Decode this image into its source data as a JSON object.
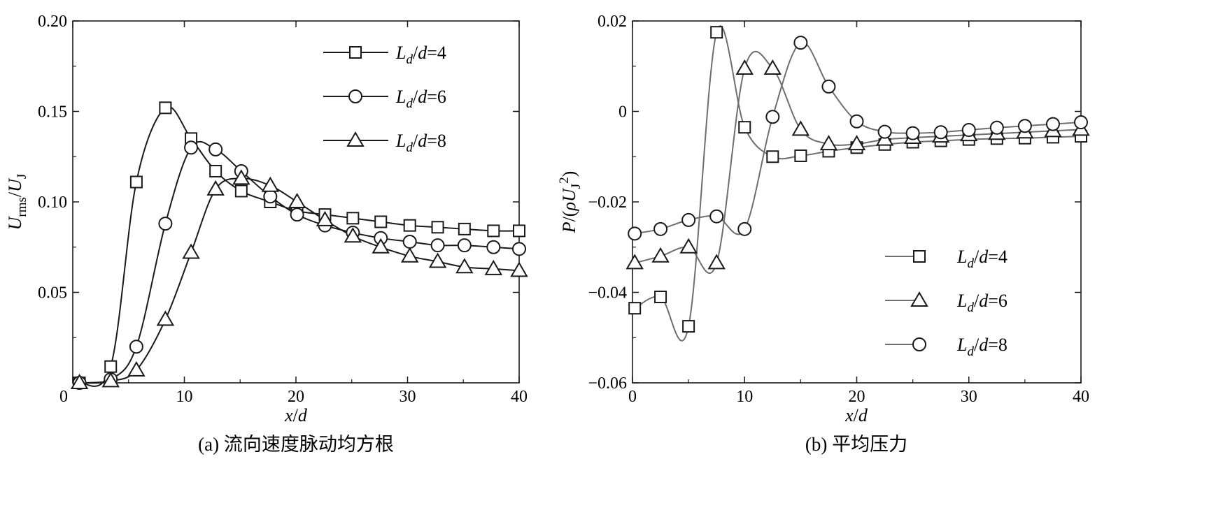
{
  "captions": {
    "a": "(a) 流向速度脉动均方根",
    "b": "(b) 平均压力"
  },
  "axis_text": {
    "a_y": {
      "U": "U",
      "sub_rms": "rms",
      "slash": "/",
      "U2": "U",
      "sub_J": "J"
    },
    "b_y": {
      "P": "P",
      "mid": "/(",
      "rho": "ρ",
      "U": "U",
      "sub_J": "J",
      "sup_2": "2",
      "close": ")"
    },
    "x": {
      "x": "x",
      "slash": "/",
      "d": "d"
    }
  },
  "colors": {
    "a_line": "#1a1a1a",
    "b_line": "#6e6e6e",
    "marker_fill": "#ffffff",
    "marker_stroke": "#1a1a1a"
  },
  "chart_data": [
    {
      "type": "line",
      "panel": "a",
      "xlabel": "x/d",
      "ylabel": "Urms/UJ",
      "xlim": [
        0,
        40
      ],
      "ylim": [
        0,
        0.2
      ],
      "xticks": [
        0,
        10,
        20,
        30,
        40
      ],
      "yticks": [
        0.05,
        0.1,
        0.15,
        0.2
      ],
      "ytick_labels": [
        "0.05",
        "0.10",
        "0.15",
        "0.20"
      ],
      "grid": false,
      "legend_position": "top-right",
      "series": [
        {
          "name": "Ld/d=4",
          "legend_main": "L",
          "legend_sub": "d",
          "legend_rest": "/d=4",
          "marker": "square",
          "x": [
            0.6,
            3.4,
            5.7,
            8.3,
            10.6,
            12.8,
            15.1,
            17.7,
            20.1,
            22.6,
            25.1,
            27.6,
            30.2,
            32.7,
            35.1,
            37.7,
            40
          ],
          "y": [
            0.0,
            0.009,
            0.111,
            0.152,
            0.135,
            0.117,
            0.106,
            0.1,
            0.095,
            0.093,
            0.091,
            0.089,
            0.087,
            0.086,
            0.085,
            0.084,
            0.084
          ]
        },
        {
          "name": "Ld/d=6",
          "legend_main": "L",
          "legend_sub": "d",
          "legend_rest": "/d=6",
          "marker": "circle",
          "x": [
            0.6,
            3.4,
            5.7,
            8.3,
            10.6,
            12.8,
            15.1,
            17.7,
            20.1,
            22.6,
            25.1,
            27.6,
            30.2,
            32.7,
            35.1,
            37.7,
            40
          ],
          "y": [
            0.0,
            0.002,
            0.02,
            0.088,
            0.13,
            0.129,
            0.117,
            0.103,
            0.093,
            0.087,
            0.083,
            0.08,
            0.078,
            0.076,
            0.076,
            0.075,
            0.074
          ]
        },
        {
          "name": "Ld/d=8",
          "legend_main": "L",
          "legend_sub": "d",
          "legend_rest": "/d=8",
          "marker": "triangle",
          "x": [
            0.6,
            3.4,
            5.7,
            8.3,
            10.6,
            12.8,
            15.1,
            17.7,
            20.1,
            22.6,
            25.1,
            27.6,
            30.2,
            32.7,
            35.1,
            37.7,
            40
          ],
          "y": [
            0.0,
            0.001,
            0.007,
            0.035,
            0.072,
            0.107,
            0.113,
            0.109,
            0.1,
            0.09,
            0.081,
            0.075,
            0.07,
            0.067,
            0.064,
            0.063,
            0.062
          ]
        }
      ]
    },
    {
      "type": "line",
      "panel": "b",
      "xlabel": "x/d",
      "ylabel": "P/(ρUJ²)",
      "xlim": [
        0,
        40
      ],
      "ylim": [
        -0.06,
        0.02
      ],
      "xticks": [
        0,
        10,
        20,
        30,
        40
      ],
      "yticks": [
        -0.06,
        -0.04,
        -0.02,
        0,
        0.02
      ],
      "ytick_labels": [
        "−0.06",
        "−0.04",
        "−0.02",
        "0",
        "0.02"
      ],
      "grid": false,
      "legend_position": "bottom-right",
      "series": [
        {
          "name": "Ld/d=4",
          "legend_main": "L",
          "legend_sub": "d",
          "legend_rest": "/d=4",
          "marker": "square",
          "x": [
            0.2,
            2.5,
            5,
            7.5,
            10,
            12.5,
            15,
            17.5,
            20,
            22.5,
            25,
            27.5,
            30,
            32.5,
            35,
            37.5,
            40
          ],
          "y": [
            -0.0435,
            -0.041,
            -0.0475,
            0.0175,
            -0.0035,
            -0.01,
            -0.0098,
            -0.0088,
            -0.008,
            -0.0073,
            -0.0068,
            -0.0065,
            -0.0062,
            -0.006,
            -0.0059,
            -0.0057,
            -0.0055
          ]
        },
        {
          "name": "Ld/d=6",
          "legend_main": "L",
          "legend_sub": "d",
          "legend_rest": "/d=6",
          "marker": "triangle",
          "x": [
            0.2,
            2.5,
            5,
            7.5,
            10,
            12.5,
            15,
            17.5,
            20,
            22.5,
            25,
            27.5,
            30,
            32.5,
            35,
            37.5,
            40
          ],
          "y": [
            -0.0335,
            -0.032,
            -0.03,
            -0.0335,
            0.0095,
            0.0095,
            -0.004,
            -0.0072,
            -0.0072,
            -0.0062,
            -0.0058,
            -0.0055,
            -0.0052,
            -0.0049,
            -0.0046,
            -0.0043,
            -0.004
          ]
        },
        {
          "name": "Ld/d=8",
          "legend_main": "L",
          "legend_sub": "d",
          "legend_rest": "/d=8",
          "marker": "circle",
          "x": [
            0.2,
            2.5,
            5,
            7.5,
            10,
            12.5,
            15,
            17.5,
            20,
            22.5,
            25,
            27.5,
            30,
            32.5,
            35,
            37.5,
            40
          ],
          "y": [
            -0.027,
            -0.026,
            -0.024,
            -0.0232,
            -0.026,
            -0.0012,
            0.0152,
            0.0055,
            -0.0022,
            -0.0045,
            -0.0048,
            -0.0046,
            -0.0041,
            -0.0036,
            -0.0032,
            -0.0028,
            -0.0024
          ]
        }
      ]
    }
  ]
}
